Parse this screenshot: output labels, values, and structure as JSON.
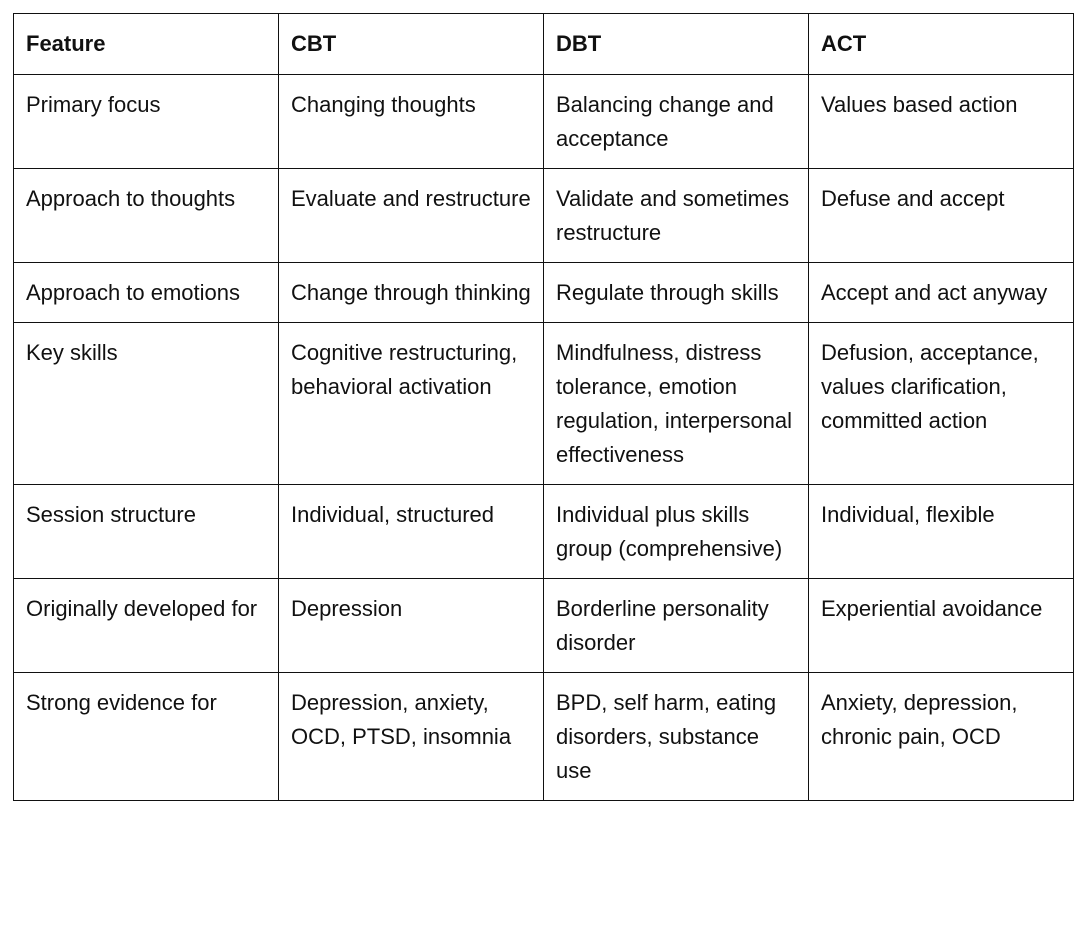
{
  "table": {
    "header": [
      "Feature",
      "CBT",
      "DBT",
      "ACT"
    ],
    "rows": [
      [
        "Primary focus",
        "Changing thoughts",
        "Balancing change and acceptance",
        "Values based action"
      ],
      [
        "Approach to thoughts",
        "Evaluate and restructure",
        "Validate and sometimes restructure",
        "Defuse and accept"
      ],
      [
        "Approach to emotions",
        "Change through thinking",
        "Regulate through skills",
        "Accept and act anyway"
      ],
      [
        "Key skills",
        "Cognitive restructuring, behavioral activation",
        "Mindfulness, distress tolerance, emotion regulation, interpersonal effectiveness",
        "Defusion, acceptance, values clarification, committed action"
      ],
      [
        "Session structure",
        "Individual, structured",
        "Individual plus skills group (comprehensive)",
        "Individual, flexible"
      ],
      [
        "Originally developed for",
        "Depression",
        "Borderline personality disorder",
        "Experiential avoidance"
      ],
      [
        "Strong evidence for",
        "Depression, anxiety, OCD, PTSD, insomnia",
        "BPD, self harm, eating disorders, substance use",
        "Anxiety, depression, chronic pain, OCD"
      ]
    ]
  }
}
